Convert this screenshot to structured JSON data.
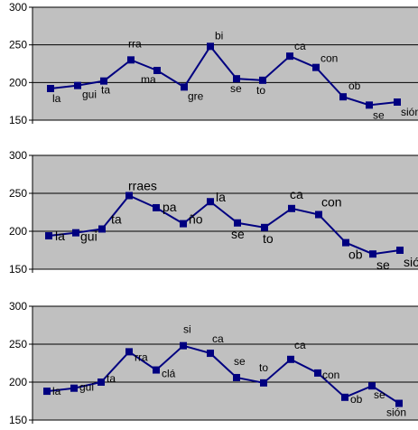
{
  "chart_data": [
    {
      "type": "line",
      "title": "",
      "xlabel": "",
      "ylabel": "",
      "ylim": [
        150,
        300
      ],
      "yticks": [
        150,
        200,
        250,
        300
      ],
      "grid": true,
      "legend": "none",
      "colors": {
        "plot_bg": "#c0c0c0",
        "line": "#000080",
        "grid": "#000000"
      },
      "points": [
        {
          "label": "la",
          "value": 192
        },
        {
          "label": "gui",
          "value": 196
        },
        {
          "label": "ta",
          "value": 202
        },
        {
          "label": "rra",
          "value": 230
        },
        {
          "label": "ma",
          "value": 216
        },
        {
          "label": "gre",
          "value": 194
        },
        {
          "label": "bi",
          "value": 248
        },
        {
          "label": "se",
          "value": 205
        },
        {
          "label": "to",
          "value": 203
        },
        {
          "label": "ca",
          "value": 235
        },
        {
          "label": "con",
          "value": 220
        },
        {
          "label": "ob",
          "value": 181
        },
        {
          "label": "se",
          "value": 170
        },
        {
          "label": "sión",
          "value": 174
        }
      ]
    },
    {
      "type": "line",
      "title": "",
      "xlabel": "",
      "ylabel": "",
      "ylim": [
        150,
        300
      ],
      "yticks": [
        150,
        200,
        250,
        300
      ],
      "grid": true,
      "legend": "none",
      "colors": {
        "plot_bg": "#c0c0c0",
        "line": "#000080",
        "grid": "#000000"
      },
      "points": [
        {
          "label": "la",
          "value": 194
        },
        {
          "label": "gui",
          "value": 198
        },
        {
          "label": "ta",
          "value": 203
        },
        {
          "label": "rraes",
          "value": 247
        },
        {
          "label": "pa",
          "value": 231
        },
        {
          "label": "ño",
          "value": 210
        },
        {
          "label": "la",
          "value": 239
        },
        {
          "label": "se",
          "value": 211
        },
        {
          "label": "to",
          "value": 205
        },
        {
          "label": "ca",
          "value": 230
        },
        {
          "label": "con",
          "value": 222
        },
        {
          "label": "ob",
          "value": 185
        },
        {
          "label": "se",
          "value": 170
        },
        {
          "label": "sión",
          "value": 175
        }
      ]
    },
    {
      "type": "line",
      "title": "",
      "xlabel": "",
      "ylabel": "",
      "ylim": [
        150,
        300
      ],
      "yticks": [
        150,
        200,
        250,
        300
      ],
      "grid": true,
      "legend": "none",
      "colors": {
        "plot_bg": "#c0c0c0",
        "line": "#000080",
        "grid": "#000000"
      },
      "points": [
        {
          "label": "la",
          "value": 188
        },
        {
          "label": "gui",
          "value": 192
        },
        {
          "label": "ta",
          "value": 200
        },
        {
          "label": "rra",
          "value": 240
        },
        {
          "label": "clá",
          "value": 216
        },
        {
          "label": "si",
          "value": 248
        },
        {
          "label": "ca",
          "value": 238
        },
        {
          "label": "se",
          "value": 206
        },
        {
          "label": "to",
          "value": 199
        },
        {
          "label": "ca",
          "value": 230
        },
        {
          "label": "con",
          "value": 212
        },
        {
          "label": "ob",
          "value": 180
        },
        {
          "label": "se",
          "value": 195
        },
        {
          "label": "sión",
          "value": 172
        }
      ]
    }
  ]
}
